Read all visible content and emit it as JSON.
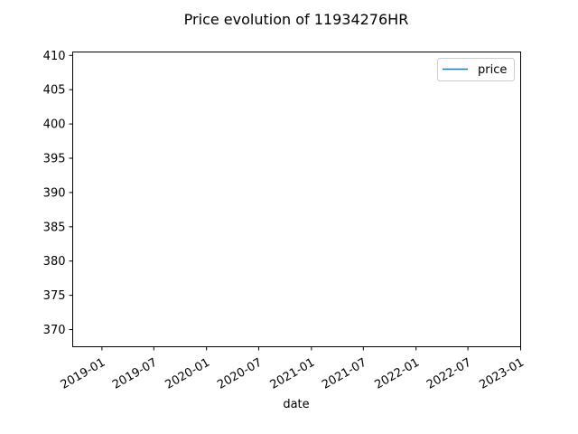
{
  "chart_data": {
    "type": "line",
    "title": "Price evolution of 11934276HR",
    "xlabel": "date",
    "ylabel": "",
    "x_axis_type": "date",
    "xlim": [
      "2018-09-21",
      "2023-01-01"
    ],
    "ylim": [
      367.5,
      410.5
    ],
    "x_ticks": [
      "2019-01",
      "2019-07",
      "2020-01",
      "2020-07",
      "2021-01",
      "2021-07",
      "2022-01",
      "2022-07",
      "2023-01"
    ],
    "x_tick_dates": [
      "2019-01-01",
      "2019-07-01",
      "2020-01-01",
      "2020-07-01",
      "2021-01-01",
      "2021-07-01",
      "2022-01-01",
      "2022-07-01",
      "2023-01-01"
    ],
    "y_ticks": [
      370,
      375,
      380,
      385,
      390,
      395,
      400,
      405,
      410
    ],
    "series": [
      {
        "name": "price",
        "color": "#1f77b4",
        "x": [],
        "y": []
      }
    ],
    "legend": {
      "placement": "top-right",
      "entries": [
        "price"
      ]
    },
    "grid": false
  }
}
